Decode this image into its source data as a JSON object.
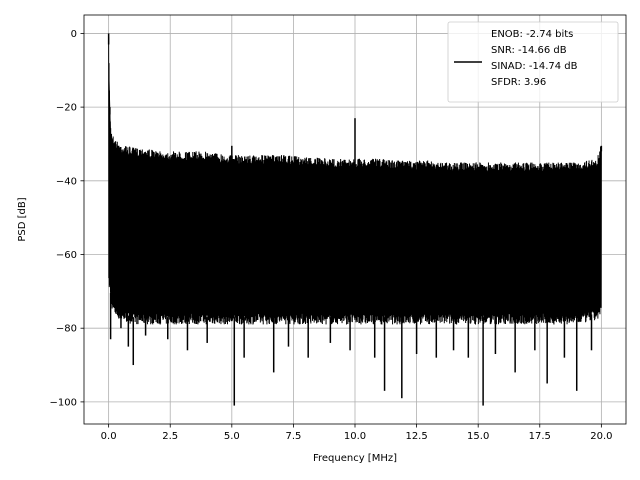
{
  "chart_data": {
    "type": "line",
    "title": "",
    "xlabel": "Frequency [MHz]",
    "ylabel": "PSD [dB]",
    "xlim": [
      -1.0,
      21.0
    ],
    "ylim": [
      -106,
      5
    ],
    "grid": true,
    "xticks": [
      0.0,
      2.5,
      5.0,
      7.5,
      10.0,
      12.5,
      15.0,
      17.5,
      20.0
    ],
    "xtick_labels": [
      "0.0",
      "2.5",
      "5.0",
      "7.5",
      "10.0",
      "12.5",
      "15.0",
      "17.5",
      "20.0"
    ],
    "yticks": [
      0,
      -20,
      -40,
      -60,
      -80,
      -100
    ],
    "ytick_labels": [
      "0",
      "−20",
      "−40",
      "−60",
      "−80",
      "−100"
    ],
    "legend": {
      "position": "top-right",
      "entries": [
        "ENOB: -2.74 bits",
        "SNR: -14.66 dB",
        "SINAD: -14.74 dB",
        "SFDR: 3.96"
      ]
    },
    "series": [
      {
        "color": "#000000",
        "envelope": {
          "x": [
            0.0,
            0.05,
            0.1,
            0.2,
            0.3,
            0.5,
            1.0,
            1.5,
            2.0,
            3.0,
            4.0,
            5.0,
            6.0,
            7.0,
            8.0,
            9.0,
            10.0,
            11.0,
            12.0,
            13.0,
            14.0,
            15.0,
            16.0,
            17.0,
            18.0,
            19.0,
            19.8,
            20.0
          ],
          "upper": [
            -1,
            -20,
            -26,
            -28,
            -29,
            -30,
            -31,
            -31,
            -32,
            -32,
            -32,
            -33,
            -33,
            -33,
            -33.5,
            -34,
            -34,
            -34,
            -34.5,
            -34.5,
            -35,
            -35,
            -35,
            -35,
            -35,
            -35,
            -34,
            -30
          ],
          "lower": [
            -67,
            -68,
            -72,
            -74,
            -75,
            -76,
            -77,
            -77,
            -77,
            -77,
            -77,
            -77,
            -77,
            -77,
            -77,
            -77,
            -77,
            -77,
            -77,
            -77,
            -77,
            -77,
            -77,
            -77,
            -77,
            -77,
            -76,
            -75
          ]
        },
        "spikes": [
          {
            "x": 0.0,
            "y": 0
          },
          {
            "x": 0.05,
            "y": -20
          },
          {
            "x": 5.0,
            "y": -30.5
          },
          {
            "x": 10.0,
            "y": -23
          },
          {
            "x": 20.0,
            "y": -30.5
          }
        ],
        "dips": [
          {
            "x": 0.08,
            "y": -83
          },
          {
            "x": 0.5,
            "y": -80
          },
          {
            "x": 0.8,
            "y": -85
          },
          {
            "x": 1.0,
            "y": -90
          },
          {
            "x": 1.5,
            "y": -82
          },
          {
            "x": 2.4,
            "y": -83
          },
          {
            "x": 3.2,
            "y": -86
          },
          {
            "x": 4.0,
            "y": -84
          },
          {
            "x": 5.1,
            "y": -101
          },
          {
            "x": 5.5,
            "y": -88
          },
          {
            "x": 6.7,
            "y": -92
          },
          {
            "x": 7.3,
            "y": -85
          },
          {
            "x": 8.1,
            "y": -88
          },
          {
            "x": 9.0,
            "y": -84
          },
          {
            "x": 9.8,
            "y": -86
          },
          {
            "x": 10.8,
            "y": -88
          },
          {
            "x": 11.2,
            "y": -97
          },
          {
            "x": 11.9,
            "y": -99
          },
          {
            "x": 12.5,
            "y": -87
          },
          {
            "x": 13.3,
            "y": -88
          },
          {
            "x": 14.0,
            "y": -86
          },
          {
            "x": 14.6,
            "y": -88
          },
          {
            "x": 15.2,
            "y": -101
          },
          {
            "x": 15.7,
            "y": -87
          },
          {
            "x": 16.5,
            "y": -92
          },
          {
            "x": 17.3,
            "y": -86
          },
          {
            "x": 17.8,
            "y": -95
          },
          {
            "x": 18.5,
            "y": -88
          },
          {
            "x": 19.0,
            "y": -97
          },
          {
            "x": 19.6,
            "y": -86
          }
        ]
      }
    ]
  }
}
